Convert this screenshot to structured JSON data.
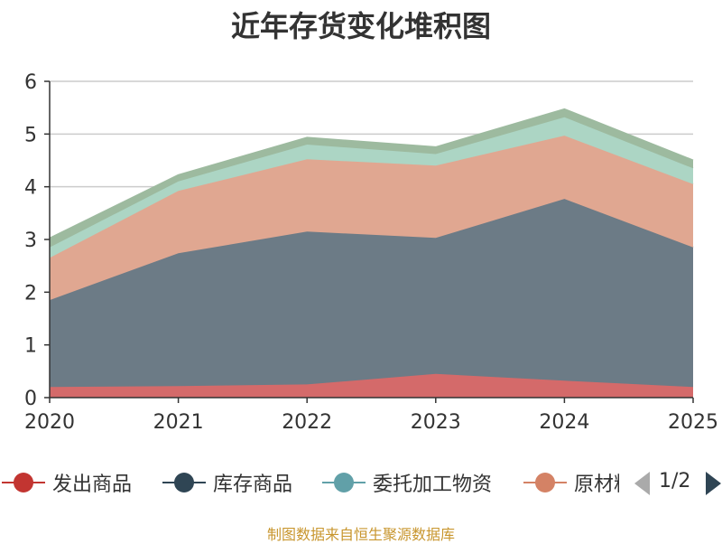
{
  "chart_data": {
    "type": "area",
    "stacked": true,
    "title": "近年存货变化堆积图",
    "x": [
      "2020",
      "2021",
      "2022",
      "2023",
      "2024",
      "2025"
    ],
    "ylim": [
      0,
      6
    ],
    "yticks": [
      0,
      1,
      2,
      3,
      4,
      5,
      6
    ],
    "grid": true,
    "series": [
      {
        "name": "发出商品",
        "color": "#d46a6a",
        "values": [
          0.2,
          0.22,
          0.25,
          0.45,
          0.32,
          0.2
        ]
      },
      {
        "name": "库存商品",
        "color": "#6c7b86",
        "values": [
          1.65,
          2.52,
          2.9,
          2.58,
          3.45,
          2.65
        ]
      },
      {
        "name": "原材料",
        "color": "#e0a791",
        "values": [
          0.8,
          1.18,
          1.37,
          1.37,
          1.2,
          1.2
        ]
      },
      {
        "name": "委托加工物资",
        "color": "#acd5c4",
        "values": [
          0.2,
          0.18,
          0.28,
          0.22,
          0.35,
          0.3
        ]
      },
      {
        "name": "",
        "color": "#9dba9f",
        "values": [
          0.17,
          0.12,
          0.13,
          0.13,
          0.15,
          0.15
        ]
      }
    ],
    "legend": {
      "placement": "bottom",
      "items": [
        {
          "name": "发出商品",
          "color": "#c23531"
        },
        {
          "name": "库存商品",
          "color": "#2f4554"
        },
        {
          "name": "委托加工物资",
          "color": "#61a0a8"
        },
        {
          "name": "原材料",
          "color": "#d48265"
        }
      ],
      "page": "1/2"
    },
    "source": "制图数据来自恒生聚源数据库"
  }
}
